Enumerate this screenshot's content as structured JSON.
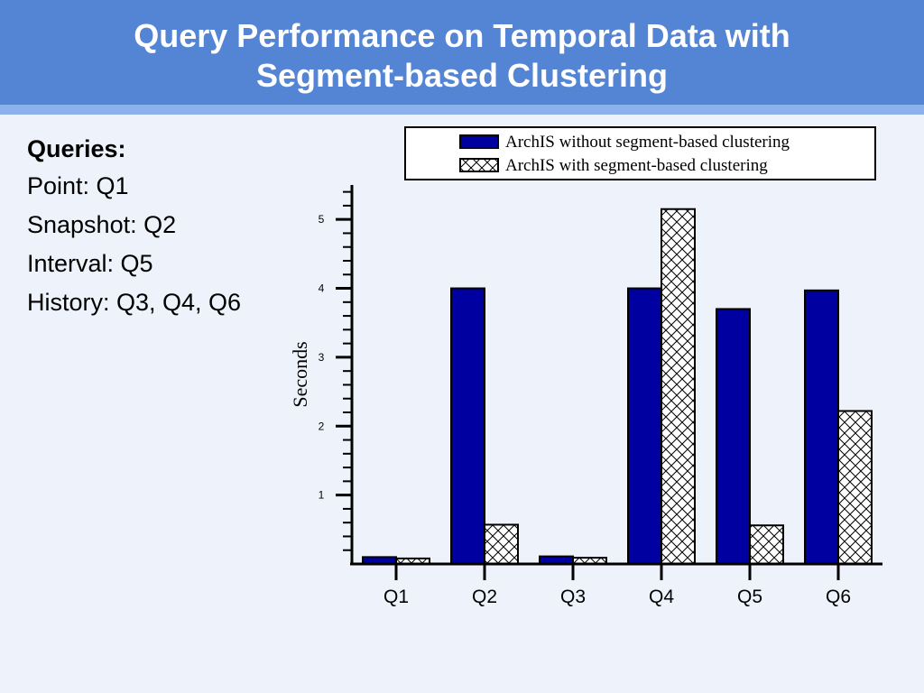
{
  "header": {
    "title_line1": "Query Performance on Temporal Data with",
    "title_line2": "Segment-based Clustering"
  },
  "queries": {
    "heading": "Queries:",
    "items": [
      "Point: Q1",
      "Snapshot: Q2",
      "Interval: Q5",
      "History: Q3, Q4, Q6"
    ]
  },
  "colors": {
    "header_bg": "#5484d4",
    "accent_stripe": "#8db1ea",
    "series_solid": "#0000a0",
    "background": "#eef3fb"
  },
  "chart_data": {
    "type": "bar",
    "title": "",
    "xlabel": "",
    "ylabel": "Seconds",
    "ylim": [
      0,
      5.5
    ],
    "yticks": [
      1,
      2,
      3,
      4,
      5
    ],
    "categories": [
      "Q1",
      "Q2",
      "Q3",
      "Q4",
      "Q5",
      "Q6"
    ],
    "series": [
      {
        "name": "ArchIS without segment-based clustering",
        "values": [
          0.1,
          4.0,
          0.11,
          4.0,
          3.7,
          3.97
        ],
        "pattern": "solid"
      },
      {
        "name": "ArchIS with segment-based clustering",
        "values": [
          0.08,
          0.57,
          0.09,
          5.15,
          0.56,
          2.22
        ],
        "pattern": "crosshatch"
      }
    ],
    "legend_position": "top-right",
    "grid": false
  }
}
